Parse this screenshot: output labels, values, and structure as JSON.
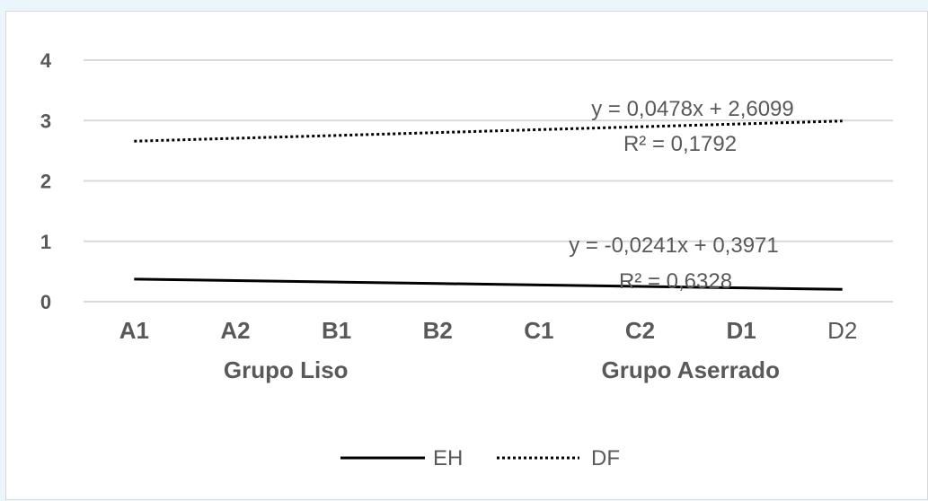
{
  "chart_data": {
    "type": "line",
    "categories": [
      "A1",
      "A2",
      "B1",
      "B2",
      "C1",
      "C2",
      "D1",
      "D2"
    ],
    "category_groups": [
      {
        "label": "Grupo Liso",
        "categories": [
          "A1",
          "A2",
          "B1",
          "B2"
        ]
      },
      {
        "label": "Grupo Aserrado",
        "categories": [
          "C1",
          "C2",
          "D1",
          "D2"
        ]
      }
    ],
    "series": [
      {
        "name": "EH",
        "style": "solid",
        "color": "#000000",
        "values": [
          0.373,
          0.349,
          0.325,
          0.301,
          0.277,
          0.252,
          0.228,
          0.204
        ]
      },
      {
        "name": "DF",
        "style": "dotted",
        "color": "#000000",
        "values": [
          2.658,
          2.706,
          2.753,
          2.801,
          2.849,
          2.897,
          2.944,
          2.992
        ]
      }
    ],
    "yticks": [
      "0",
      "1",
      "2",
      "3",
      "4"
    ],
    "ylim": [
      0,
      4
    ],
    "grid": true,
    "legend_position": "bottom",
    "annotations": [
      {
        "series": "DF",
        "equation": "y = 0,0478x + 2,6099",
        "r2": "R² = 0,1792"
      },
      {
        "series": "EH",
        "equation": "y = -0,0241x + 0,3971",
        "r2": "R² = 0,6328"
      }
    ],
    "gridline_color": "#d9d9d9",
    "text_color": "#595959"
  }
}
